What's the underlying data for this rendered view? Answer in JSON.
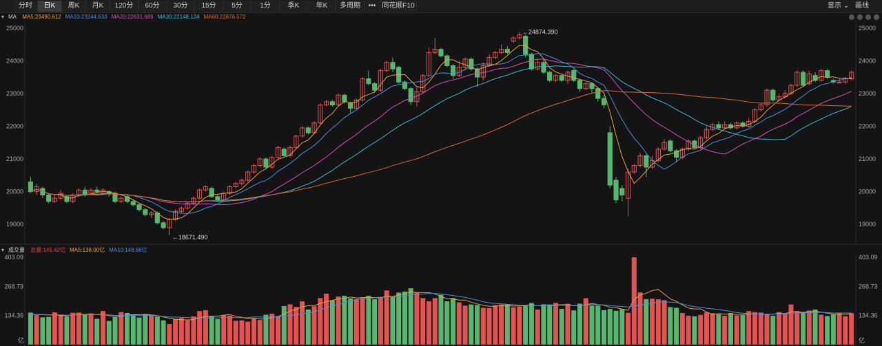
{
  "toolbar": {
    "tabs": [
      "分时",
      "日K",
      "周K",
      "月K",
      "120分",
      "60分",
      "30分",
      "15分",
      "5分",
      "1分",
      "季K",
      "年K",
      "多周期",
      "•••",
      "同花顺F10"
    ],
    "active_index": 1,
    "display_label": "显示",
    "draw_label": "画线"
  },
  "price_panel": {
    "label": "MA",
    "ma": [
      {
        "text": "MA5:23490.612",
        "color": "#e8a23a"
      },
      {
        "text": "MA10:23244.633",
        "color": "#4a8fe0"
      },
      {
        "text": "MA20:22631.689",
        "color": "#d84fbf"
      },
      {
        "text": "MA30:22148.124",
        "color": "#3fb8d8"
      },
      {
        "text": "MA60:22876.572",
        "color": "#e0672e"
      }
    ],
    "high_label": "24874.390",
    "low_label": "18671.490"
  },
  "volume_panel": {
    "label": "成交量",
    "items": [
      {
        "text": "总量:145.42亿",
        "color": "#e04848"
      },
      {
        "text": "MA5:138.00亿",
        "color": "#e8a23a"
      },
      {
        "text": "MA10:148.86亿",
        "color": "#4a8fe0"
      }
    ],
    "unit": "亿"
  },
  "colors": {
    "up": "#e55252",
    "down": "#56b870",
    "bg": "#141414"
  },
  "chart_data": [
    {
      "type": "candlestick",
      "yticks": [
        19000,
        20000,
        21000,
        22000,
        23000,
        24000,
        25000
      ],
      "ylim": [
        18500,
        25100
      ],
      "high": 24874.39,
      "low": 18671.49,
      "candles": [
        [
          20300,
          20000,
          20450,
          19950
        ],
        [
          20000,
          20150,
          20250,
          19900
        ],
        [
          20100,
          19900,
          20150,
          19800
        ],
        [
          19900,
          19700,
          19950,
          19650
        ],
        [
          19700,
          19800,
          19900,
          19650
        ],
        [
          19800,
          19950,
          20050,
          19750
        ],
        [
          19850,
          19700,
          19900,
          19650
        ],
        [
          19700,
          19900,
          19950,
          19650
        ],
        [
          19900,
          20050,
          20100,
          19850
        ],
        [
          20050,
          19900,
          20150,
          19850
        ],
        [
          19950,
          20050,
          20100,
          19900
        ],
        [
          20050,
          20000,
          20150,
          19950
        ],
        [
          19950,
          20050,
          20100,
          19900
        ],
        [
          20000,
          19950,
          20050,
          19850
        ],
        [
          19950,
          19700,
          20000,
          19650
        ],
        [
          19700,
          19800,
          19850,
          19650
        ],
        [
          19850,
          19700,
          19900,
          19650
        ],
        [
          19700,
          19600,
          19750,
          19550
        ],
        [
          19600,
          19450,
          19650,
          19400
        ],
        [
          19450,
          19300,
          19500,
          19250
        ],
        [
          19300,
          19350,
          19400,
          19200
        ],
        [
          19350,
          19050,
          19400,
          19000
        ],
        [
          19050,
          18900,
          19100,
          18850
        ],
        [
          18900,
          19150,
          19200,
          18671
        ],
        [
          19150,
          19400,
          19450,
          19100
        ],
        [
          19400,
          19500,
          19550,
          19350
        ],
        [
          19500,
          19650,
          19700,
          19450
        ],
        [
          19650,
          19800,
          19850,
          19600
        ],
        [
          19800,
          20050,
          20100,
          19750
        ],
        [
          20050,
          20150,
          20200,
          20000
        ],
        [
          20100,
          19850,
          20150,
          19800
        ],
        [
          19850,
          19750,
          19900,
          19700
        ],
        [
          19750,
          19950,
          20000,
          19700
        ],
        [
          19950,
          20150,
          20200,
          19900
        ],
        [
          20150,
          20250,
          20300,
          20100
        ],
        [
          20250,
          20350,
          20400,
          20200
        ],
        [
          20350,
          20600,
          20650,
          20300
        ],
        [
          20600,
          20800,
          20850,
          20550
        ],
        [
          20800,
          21000,
          21050,
          20750
        ],
        [
          21000,
          20750,
          21050,
          20700
        ],
        [
          20750,
          21050,
          21100,
          20700
        ],
        [
          21050,
          21350,
          21400,
          21000
        ],
        [
          21300,
          21100,
          21350,
          21050
        ],
        [
          21100,
          21350,
          21400,
          21050
        ],
        [
          21350,
          21700,
          21750,
          21300
        ],
        [
          21700,
          21950,
          22000,
          21650
        ],
        [
          21950,
          21800,
          22000,
          21750
        ],
        [
          21800,
          22100,
          22150,
          21750
        ],
        [
          22100,
          22650,
          22700,
          22050
        ],
        [
          22650,
          22750,
          22800,
          22600
        ],
        [
          22750,
          22650,
          22800,
          22600
        ],
        [
          22650,
          22950,
          23000,
          22600
        ],
        [
          22950,
          22750,
          23000,
          22700
        ],
        [
          22700,
          22550,
          22750,
          22400
        ],
        [
          22550,
          22800,
          22850,
          22500
        ],
        [
          22800,
          23450,
          23500,
          22750
        ],
        [
          23450,
          23300,
          23700,
          23250
        ],
        [
          23300,
          23100,
          23350,
          23050
        ],
        [
          23100,
          23700,
          23750,
          23050
        ],
        [
          23700,
          23950,
          24000,
          23650
        ],
        [
          23950,
          23750,
          24100,
          23650
        ],
        [
          23800,
          23350,
          23850,
          23300
        ],
        [
          23350,
          23150,
          23400,
          23100
        ],
        [
          23150,
          22750,
          23200,
          22650
        ],
        [
          22750,
          23050,
          23200,
          22600
        ],
        [
          23050,
          23550,
          23600,
          23000
        ],
        [
          23550,
          24250,
          24400,
          23500
        ],
        [
          24250,
          24350,
          24700,
          24200
        ],
        [
          24350,
          24150,
          24400,
          24100
        ],
        [
          24150,
          23850,
          24200,
          23800
        ],
        [
          23850,
          23550,
          23900,
          23450
        ],
        [
          23550,
          23800,
          24000,
          23500
        ],
        [
          23800,
          24050,
          24100,
          23700
        ],
        [
          24050,
          23750,
          24100,
          23700
        ],
        [
          23750,
          23500,
          23800,
          23200
        ],
        [
          23500,
          23850,
          23950,
          23400
        ],
        [
          23850,
          24100,
          24200,
          23800
        ],
        [
          24100,
          24250,
          24300,
          24050
        ],
        [
          24250,
          24350,
          24500,
          24200
        ],
        [
          24350,
          24250,
          24450,
          24200
        ],
        [
          24600,
          24700,
          24750,
          24550
        ],
        [
          24700,
          24800,
          24874,
          24650
        ],
        [
          24750,
          24200,
          24800,
          24100
        ],
        [
          24200,
          23750,
          24250,
          23700
        ],
        [
          23750,
          23950,
          24050,
          23700
        ],
        [
          23950,
          23650,
          24050,
          23600
        ],
        [
          23650,
          23400,
          23700,
          23350
        ],
        [
          23400,
          23550,
          23600,
          23350
        ],
        [
          23550,
          23400,
          23600,
          23350
        ],
        [
          23400,
          23650,
          23700,
          23300
        ],
        [
          23700,
          23400,
          23750,
          23350
        ],
        [
          23400,
          23150,
          23450,
          23050
        ],
        [
          23150,
          23300,
          23350,
          23100
        ],
        [
          23300,
          23150,
          23350,
          23000
        ],
        [
          23150,
          22850,
          23200,
          22750
        ],
        [
          22850,
          22650,
          22950,
          22550
        ],
        [
          21800,
          20200,
          22000,
          20100
        ],
        [
          20350,
          19750,
          20450,
          19650
        ],
        [
          20100,
          19900,
          20200,
          19700
        ],
        [
          19800,
          20600,
          20700,
          19250
        ],
        [
          20600,
          20800,
          20850,
          20550
        ],
        [
          20800,
          21100,
          21200,
          20750
        ],
        [
          21100,
          20750,
          21150,
          20450
        ],
        [
          20750,
          20950,
          21100,
          20700
        ],
        [
          20950,
          21300,
          21350,
          20900
        ],
        [
          21300,
          21500,
          21600,
          21250
        ],
        [
          21550,
          21250,
          21600,
          21200
        ],
        [
          21250,
          21050,
          21300,
          20900
        ],
        [
          21050,
          21300,
          21350,
          21000
        ],
        [
          21300,
          21550,
          21600,
          21250
        ],
        [
          21550,
          21350,
          21600,
          21300
        ],
        [
          21350,
          21650,
          21700,
          21300
        ],
        [
          21650,
          21900,
          22000,
          21600
        ],
        [
          21900,
          22050,
          22100,
          21850
        ],
        [
          22050,
          21950,
          22150,
          21900
        ],
        [
          21950,
          22050,
          22150,
          21900
        ],
        [
          22050,
          21950,
          22100,
          21900
        ],
        [
          21950,
          22100,
          22150,
          21900
        ],
        [
          22100,
          22000,
          22150,
          21950
        ],
        [
          22000,
          22150,
          22250,
          21950
        ],
        [
          22150,
          22500,
          22550,
          22100
        ],
        [
          22500,
          22650,
          22700,
          22450
        ],
        [
          22650,
          23100,
          23150,
          22600
        ],
        [
          23100,
          22800,
          23150,
          22750
        ],
        [
          22800,
          22900,
          23000,
          22750
        ],
        [
          22900,
          23000,
          23100,
          22850
        ],
        [
          23000,
          23250,
          23300,
          22950
        ],
        [
          23250,
          23650,
          23700,
          23200
        ],
        [
          23650,
          23250,
          23700,
          23200
        ],
        [
          23300,
          23600,
          23700,
          23250
        ],
        [
          23550,
          23400,
          23650,
          23350
        ],
        [
          23400,
          23700,
          23750,
          23350
        ],
        [
          23700,
          23500,
          23750,
          23450
        ],
        [
          23400,
          23350,
          23450,
          23300
        ],
        [
          23350,
          23350,
          23450,
          23300
        ],
        [
          23350,
          23450,
          23500,
          23300
        ],
        [
          23450,
          23650,
          23700,
          23400
        ]
      ]
    },
    {
      "type": "bar",
      "title": "成交量",
      "yticks": [
        134.36,
        268.73,
        403.09
      ],
      "ylim": [
        0,
        403.09
      ],
      "values": [
        148,
        136,
        126,
        128,
        149,
        137,
        131,
        147,
        148,
        137,
        144,
        119,
        155,
        109,
        127,
        150,
        146,
        139,
        125,
        141,
        134,
        129,
        112,
        95,
        119,
        123,
        112,
        130,
        155,
        159,
        132,
        117,
        136,
        134,
        110,
        112,
        106,
        122,
        114,
        138,
        143,
        132,
        178,
        186,
        174,
        200,
        162,
        177,
        215,
        235,
        205,
        222,
        225,
        214,
        210,
        215,
        225,
        210,
        220,
        250,
        220,
        240,
        245,
        260,
        240,
        215,
        200,
        215,
        230,
        200,
        215,
        195,
        180,
        185,
        183,
        170,
        168,
        182,
        185,
        186,
        172,
        175,
        180,
        192,
        162,
        186,
        185,
        193,
        165,
        188,
        158,
        189,
        214,
        180,
        180,
        159,
        165,
        156,
        163,
        147,
        403,
        241,
        210,
        212,
        209,
        205,
        173,
        170,
        146,
        133,
        131,
        137,
        149,
        145,
        140,
        133,
        146,
        135,
        136,
        155,
        150,
        148,
        140,
        133,
        150,
        141,
        185,
        155,
        148,
        157,
        162,
        138,
        132,
        139,
        145,
        131,
        145
      ],
      "ma5": [
        140,
        139,
        138,
        137,
        137,
        134,
        134,
        138,
        140,
        140,
        141,
        139,
        141,
        133,
        131,
        131,
        137,
        138,
        138,
        140,
        137,
        134,
        128,
        122,
        117,
        115,
        114,
        116,
        123,
        130,
        131,
        131,
        136,
        139,
        131,
        126,
        120,
        122,
        118,
        118,
        125,
        130,
        141,
        155,
        163,
        174,
        180,
        180,
        190,
        198,
        204,
        212,
        213,
        220,
        215,
        217,
        218,
        217,
        216,
        224,
        222,
        229,
        235,
        243,
        241,
        240,
        240,
        234,
        222,
        212,
        210,
        206,
        205,
        196,
        188,
        181,
        177,
        177,
        180,
        180,
        178,
        178,
        180,
        184,
        180,
        180,
        181,
        183,
        184,
        185,
        180,
        178,
        184,
        190,
        185,
        182,
        172,
        170,
        164,
        158,
        208,
        229,
        237,
        249,
        255,
        233,
        211,
        200,
        183,
        169,
        164,
        165,
        150,
        139,
        143,
        141,
        141,
        140,
        139,
        141,
        142,
        140,
        141,
        140,
        145,
        143,
        151,
        151,
        149,
        152,
        154,
        150,
        145,
        141,
        140,
        140,
        141
      ],
      "ma10": [
        142,
        140,
        139,
        138,
        138,
        137,
        136,
        137,
        138,
        138,
        139,
        138,
        139,
        137,
        135,
        134,
        135,
        135,
        134,
        135,
        135,
        133,
        130,
        128,
        127,
        126,
        125,
        124,
        124,
        124,
        123,
        123,
        126,
        126,
        124,
        124,
        125,
        128,
        128,
        127,
        128,
        128,
        131,
        135,
        138,
        142,
        146,
        150,
        160,
        170,
        178,
        186,
        194,
        202,
        208,
        212,
        214,
        216,
        216,
        220,
        220,
        222,
        226,
        230,
        232,
        234,
        236,
        236,
        234,
        230,
        227,
        222,
        218,
        212,
        205,
        198,
        193,
        190,
        188,
        186,
        184,
        182,
        182,
        182,
        180,
        180,
        180,
        181,
        182,
        182,
        180,
        180,
        182,
        185,
        184,
        183,
        180,
        178,
        176,
        174,
        178,
        182,
        186,
        192,
        196,
        198,
        196,
        194,
        188,
        180,
        175,
        172,
        168,
        165,
        162,
        158,
        153,
        148,
        145,
        143,
        142,
        141,
        140,
        141,
        142,
        142,
        145,
        146,
        146,
        148,
        149,
        149,
        148,
        146,
        146,
        146,
        146
      ]
    }
  ]
}
